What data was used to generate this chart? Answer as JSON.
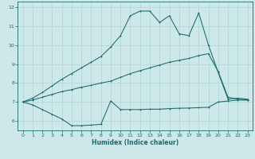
{
  "xlabel": "Humidex (Indice chaleur)",
  "xlim": [
    -0.5,
    23.5
  ],
  "ylim": [
    5.5,
    12.3
  ],
  "yticks": [
    6,
    7,
    8,
    9,
    10,
    11,
    12
  ],
  "xticks": [
    0,
    1,
    2,
    3,
    4,
    5,
    6,
    7,
    8,
    9,
    10,
    11,
    12,
    13,
    14,
    15,
    16,
    17,
    18,
    19,
    20,
    21,
    22,
    23
  ],
  "bg_color": "#cce8e8",
  "grid_color": "#b0d4d4",
  "line_color": "#1a6b6b",
  "line1_x": [
    0,
    1,
    2,
    3,
    4,
    5,
    6,
    7,
    8,
    9,
    10,
    11,
    12,
    13,
    14,
    15,
    16,
    17,
    18,
    19,
    20,
    21,
    22,
    23
  ],
  "line1_y": [
    7.0,
    6.85,
    6.6,
    6.35,
    6.1,
    5.75,
    5.75,
    5.78,
    5.82,
    7.05,
    6.6,
    6.6,
    6.6,
    6.62,
    6.62,
    6.65,
    6.67,
    6.68,
    6.7,
    6.72,
    7.0,
    7.05,
    7.1,
    7.1
  ],
  "line2_x": [
    0,
    1,
    2,
    3,
    4,
    5,
    6,
    7,
    8,
    9,
    10,
    11,
    12,
    13,
    14,
    15,
    16,
    17,
    18,
    19,
    20,
    21,
    22,
    23
  ],
  "line2_y": [
    7.0,
    7.1,
    7.25,
    7.4,
    7.55,
    7.65,
    7.78,
    7.88,
    8.0,
    8.1,
    8.3,
    8.5,
    8.65,
    8.8,
    8.95,
    9.1,
    9.2,
    9.3,
    9.45,
    9.55,
    8.6,
    7.25,
    7.15,
    7.1
  ],
  "line3_x": [
    0,
    1,
    2,
    3,
    4,
    5,
    6,
    7,
    8,
    9,
    10,
    11,
    12,
    13,
    14,
    15,
    16,
    17,
    18,
    19,
    20,
    21,
    22,
    23
  ],
  "line3_y": [
    7.0,
    7.2,
    7.5,
    7.85,
    8.2,
    8.5,
    8.8,
    9.1,
    9.4,
    9.9,
    10.5,
    11.55,
    11.8,
    11.8,
    11.2,
    11.55,
    10.6,
    10.5,
    11.7,
    10.0,
    8.55,
    7.15,
    7.2,
    7.15
  ]
}
